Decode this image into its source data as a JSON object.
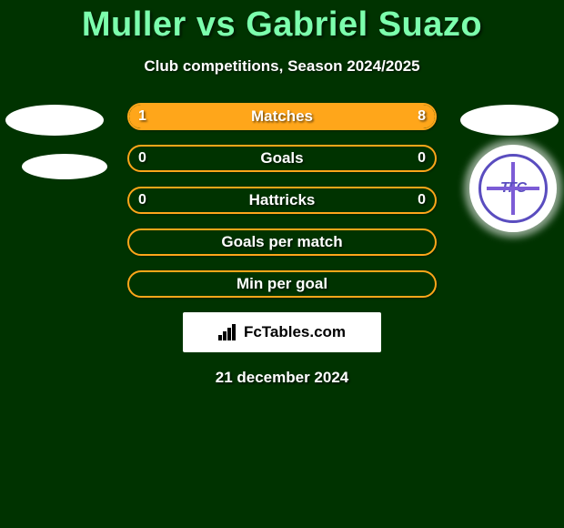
{
  "title": "Muller vs Gabriel Suazo",
  "subtitle": "Club competitions, Season 2024/2025",
  "colors": {
    "background": "#003300",
    "title": "#7cffad",
    "accent": "#ffa61a",
    "text": "#ffffff",
    "badge_border": "#5a4dbf",
    "badge_cross": "#7c5cd6"
  },
  "rows": [
    {
      "label": "Matches",
      "left": "1",
      "right": "8",
      "left_pct": 11,
      "right_pct": 89
    },
    {
      "label": "Goals",
      "left": "0",
      "right": "0",
      "left_pct": 0,
      "right_pct": 0
    },
    {
      "label": "Hattricks",
      "left": "0",
      "right": "0",
      "left_pct": 0,
      "right_pct": 0
    },
    {
      "label": "Goals per match",
      "left": "",
      "right": "",
      "left_pct": 0,
      "right_pct": 0
    },
    {
      "label": "Min per goal",
      "left": "",
      "right": "",
      "left_pct": 0,
      "right_pct": 0
    }
  ],
  "badge_text": "TFC",
  "footer_brand": "FcTables.com",
  "date": "21 december 2024"
}
